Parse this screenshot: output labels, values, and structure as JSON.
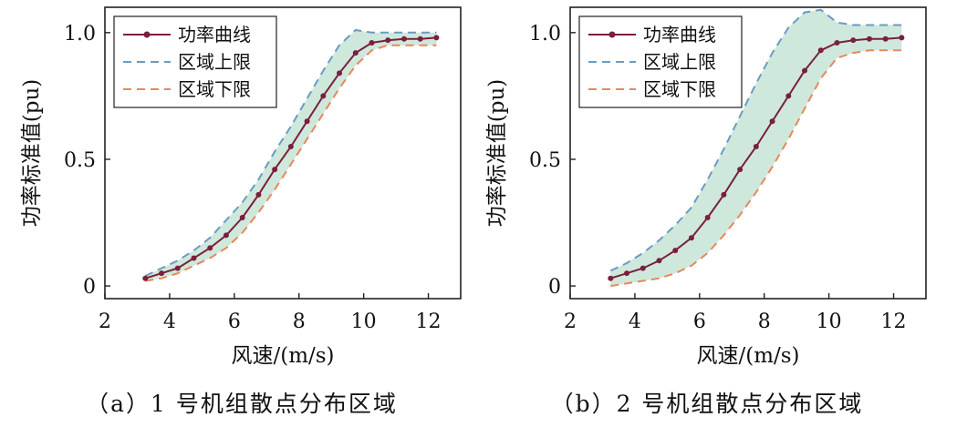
{
  "chart_data": [
    {
      "type": "line",
      "caption": "（a）1 号机组散点分布区域",
      "xlabel": "风速/(m/s)",
      "ylabel": "功率标准值(pu)",
      "xlim": [
        2,
        13
      ],
      "ylim": [
        -0.05,
        1.1
      ],
      "xticks": [
        2,
        4,
        6,
        8,
        10,
        12
      ],
      "xtick_labels": [
        "2",
        "4",
        "6",
        "8",
        "10",
        "12"
      ],
      "yticks": [
        0,
        0.5,
        1.0
      ],
      "ytick_labels": [
        "0",
        "0.5",
        "1.0"
      ],
      "legend": {
        "position": "top-left",
        "entries": [
          "功率曲线",
          "区域上限",
          "区域下限"
        ]
      },
      "colors": {
        "curve": "#7a1f3d",
        "upper": "#6a9bc3",
        "lower": "#e8875a",
        "fill": "#cfe8dc"
      },
      "series": [
        {
          "name": "功率曲线",
          "x": [
            3.25,
            3.75,
            4.25,
            4.75,
            5.25,
            5.75,
            6.25,
            6.75,
            7.25,
            7.75,
            8.25,
            8.75,
            9.25,
            9.75,
            10.25,
            10.75,
            11.25,
            11.75,
            12.25
          ],
          "y": [
            0.03,
            0.05,
            0.07,
            0.11,
            0.15,
            0.2,
            0.27,
            0.36,
            0.46,
            0.55,
            0.65,
            0.75,
            0.84,
            0.92,
            0.96,
            0.97,
            0.975,
            0.975,
            0.98
          ]
        },
        {
          "name": "区域上限",
          "x": [
            3.25,
            3.75,
            4.25,
            4.75,
            5.25,
            5.75,
            6.25,
            6.75,
            7.25,
            7.75,
            8.25,
            8.75,
            9.25,
            9.75,
            10.25,
            10.75,
            11.25,
            11.75,
            12.25
          ],
          "y": [
            0.04,
            0.07,
            0.1,
            0.14,
            0.19,
            0.26,
            0.33,
            0.42,
            0.53,
            0.63,
            0.74,
            0.85,
            0.95,
            1.01,
            1.0,
            1.0,
            1.0,
            1.0,
            1.0
          ]
        },
        {
          "name": "区域下限",
          "x": [
            3.25,
            3.75,
            4.25,
            4.75,
            5.25,
            5.75,
            6.25,
            6.75,
            7.25,
            7.75,
            8.25,
            8.75,
            9.25,
            9.75,
            10.25,
            10.75,
            11.25,
            11.75,
            12.25
          ],
          "y": [
            0.02,
            0.03,
            0.05,
            0.08,
            0.11,
            0.15,
            0.21,
            0.29,
            0.38,
            0.48,
            0.58,
            0.68,
            0.78,
            0.87,
            0.93,
            0.95,
            0.95,
            0.95,
            0.95
          ]
        }
      ]
    },
    {
      "type": "line",
      "caption": "（b）2 号机组散点分布区域",
      "xlabel": "风速/(m/s)",
      "ylabel": "功率标准值(pu)",
      "xlim": [
        2,
        13
      ],
      "ylim": [
        -0.05,
        1.1
      ],
      "xticks": [
        2,
        4,
        6,
        8,
        10,
        12
      ],
      "xtick_labels": [
        "2",
        "4",
        "6",
        "8",
        "10",
        "12"
      ],
      "yticks": [
        0,
        0.5,
        1.0
      ],
      "ytick_labels": [
        "0",
        "0.5",
        "1.0"
      ],
      "legend": {
        "position": "top-left",
        "entries": [
          "功率曲线",
          "区域上限",
          "区域下限"
        ]
      },
      "colors": {
        "curve": "#7a1f3d",
        "upper": "#6a9bc3",
        "lower": "#e8875a",
        "fill": "#cfe8dc"
      },
      "series": [
        {
          "name": "功率曲线",
          "x": [
            3.25,
            3.75,
            4.25,
            4.75,
            5.25,
            5.75,
            6.25,
            6.75,
            7.25,
            7.75,
            8.25,
            8.75,
            9.25,
            9.75,
            10.25,
            10.75,
            11.25,
            11.75,
            12.25
          ],
          "y": [
            0.03,
            0.05,
            0.07,
            0.1,
            0.14,
            0.19,
            0.27,
            0.36,
            0.46,
            0.55,
            0.65,
            0.75,
            0.85,
            0.93,
            0.96,
            0.97,
            0.975,
            0.975,
            0.98
          ]
        },
        {
          "name": "区域上限",
          "x": [
            3.25,
            3.75,
            4.25,
            4.75,
            5.25,
            5.75,
            6.25,
            6.75,
            7.25,
            7.75,
            8.25,
            8.75,
            9.25,
            9.75,
            10.25,
            10.75,
            11.25,
            11.75,
            12.25
          ],
          "y": [
            0.06,
            0.09,
            0.13,
            0.18,
            0.24,
            0.31,
            0.42,
            0.54,
            0.67,
            0.8,
            0.92,
            1.02,
            1.08,
            1.09,
            1.04,
            1.03,
            1.03,
            1.03,
            1.03
          ]
        },
        {
          "name": "区域下限",
          "x": [
            3.25,
            3.75,
            4.25,
            4.75,
            5.25,
            5.75,
            6.25,
            6.75,
            7.25,
            7.75,
            8.25,
            8.75,
            9.25,
            9.75,
            10.25,
            10.75,
            11.25,
            11.75,
            12.25
          ],
          "y": [
            0.0,
            0.01,
            0.02,
            0.03,
            0.05,
            0.08,
            0.13,
            0.2,
            0.28,
            0.37,
            0.47,
            0.58,
            0.7,
            0.82,
            0.9,
            0.92,
            0.93,
            0.93,
            0.93
          ]
        }
      ]
    }
  ]
}
